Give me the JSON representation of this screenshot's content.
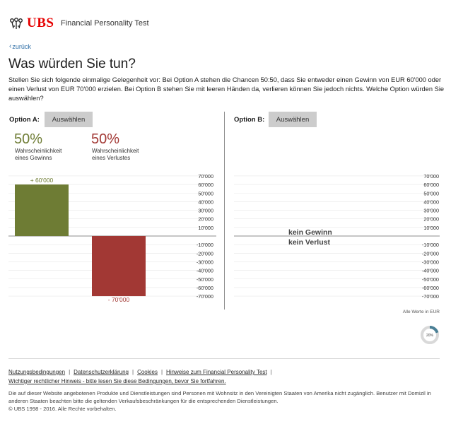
{
  "header": {
    "brand": "UBS",
    "logo_icon": "ubs-keys-icon",
    "app_title": "Financial Personality Test"
  },
  "nav": {
    "back_label": "zurück"
  },
  "question": {
    "title": "Was würden Sie tun?",
    "text": "Stellen Sie sich folgende einmalige Gelegenheit vor: Bei Option A stehen die Chancen 50:50, dass Sie entweder einen Gewinn von EUR 60'000 oder einen Verlust von EUR 70'000 erzielen. Bei Option B stehen Sie mit leeren Händen da, verlieren können Sie jedoch nichts. Welche Option würden Sie auswählen?"
  },
  "option_a": {
    "label": "Option A:",
    "button": "Auswählen",
    "win_pct": "50%",
    "win_caption_1": "Wahrscheinlichkeit",
    "win_caption_2": "eines Gewinns",
    "loss_pct": "50%",
    "loss_caption_1": "Wahrscheinlichkeit",
    "loss_caption_2": "eines Verlustes"
  },
  "option_b": {
    "label": "Option B:",
    "button": "Auswählen",
    "line_1": "kein Gewinn",
    "line_2": "kein Verlust"
  },
  "colors": {
    "gain": "#6e7c34",
    "loss": "#a23834",
    "button": "#cccccc",
    "brand": "#e60000",
    "link": "#2e6ea6"
  },
  "chart_data": [
    {
      "type": "bar",
      "categories": [
        "Gewinn",
        "Verlust"
      ],
      "values": [
        60000,
        -70000
      ],
      "data_labels": [
        "+ 60'000",
        "- 70'000"
      ],
      "ylim": [
        -70000,
        70000
      ],
      "ticks_positive": [
        "70'000",
        "60'000",
        "50'000",
        "40'000",
        "30'000",
        "20'000",
        "10'000"
      ],
      "ticks_negative": [
        "-10'000",
        "-20'000",
        "-30'000",
        "-40'000",
        "-50'000",
        "-60'000",
        "-70'000"
      ],
      "grid": true
    },
    {
      "type": "bar",
      "categories": [],
      "values": [],
      "ylim": [
        -70000,
        70000
      ],
      "ticks_positive": [
        "70'000",
        "60'000",
        "50'000",
        "40'000",
        "30'000",
        "20'000",
        "10'000"
      ],
      "ticks_negative": [
        "-10'000",
        "-20'000",
        "-30'000",
        "-40'000",
        "-50'000",
        "-60'000",
        "-70'000"
      ],
      "grid": true
    }
  ],
  "chart_note": "Alle Werte in EUR",
  "progress": {
    "value": 0.2,
    "label": "20%"
  },
  "footer": {
    "links": [
      "Nutzungsbedingungen",
      "Datenschutzerklärung",
      "Cookies",
      "Hinweise zum Financial Personality Test"
    ],
    "legal_link": "Wichtiger rechtlicher Hinweis - bitte lesen Sie diese Bedingungen, bevor Sie fortfahren.",
    "disclaimer": "Die auf dieser Website angebotenen Produkte und Dienstleistungen sind Personen mit Wohnsitz in den Vereinigten Staaten von Amerika nicht zugänglich. Benutzer mit Domizil in anderen Staaten beachten bitte die geltenden Verkaufsbeschränkungen für die entsprechenden Dienstleistungen.",
    "copyright": "© UBS 1998 - 2016. Alle Rechte vorbehalten."
  }
}
